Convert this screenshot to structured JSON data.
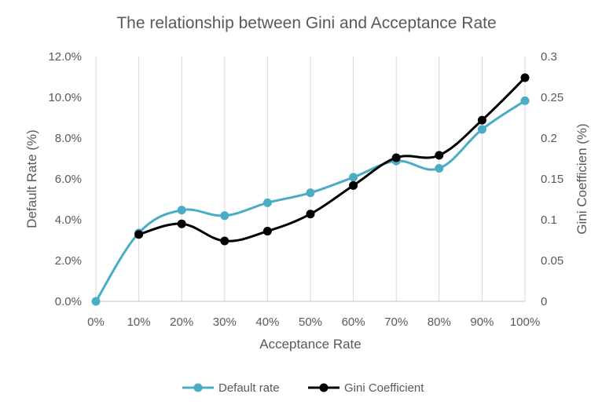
{
  "chart_data": {
    "type": "line",
    "title": "The relationship between Gini and Acceptance Rate",
    "xlabel": "Acceptance Rate",
    "ylabel": "Default Rate (%)",
    "y2label": "Gini Coefficien (%)",
    "x": [
      "0%",
      "10%",
      "20%",
      "30%",
      "40%",
      "50%",
      "60%",
      "70%",
      "80%",
      "90%",
      "100%"
    ],
    "y_ticks": [
      "0.0%",
      "2.0%",
      "4.0%",
      "6.0%",
      "8.0%",
      "10.0%",
      "12.0%"
    ],
    "y2_ticks": [
      "0",
      "0.05",
      "0.1",
      "0.15",
      "0.2",
      "0.25",
      "0.3"
    ],
    "ylim": [
      0,
      0.12
    ],
    "y2lim": [
      0,
      0.3
    ],
    "grid": "vertical",
    "legend_position": "bottom",
    "series": [
      {
        "name": "Default rate",
        "axis": "left",
        "color": "#4BACC6",
        "values": [
          0.0,
          0.0335,
          0.0447,
          0.042,
          0.0483,
          0.0532,
          0.0608,
          0.0688,
          0.0652,
          0.0843,
          0.0983
        ]
      },
      {
        "name": "Gini Coefficient",
        "axis": "right",
        "color": "#000000",
        "values": [
          null,
          0.082,
          0.095,
          0.074,
          0.086,
          0.107,
          0.142,
          0.176,
          0.179,
          0.222,
          0.274
        ]
      }
    ]
  }
}
